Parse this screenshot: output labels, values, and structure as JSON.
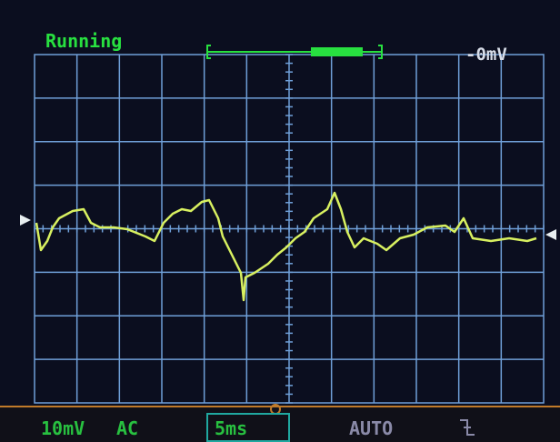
{
  "status": "Running",
  "offset": "-0mV",
  "footer": {
    "volts_div": "10mV",
    "coupling": "AC",
    "time_div": "5ms",
    "trigger_mode": "AUTO"
  }
}
